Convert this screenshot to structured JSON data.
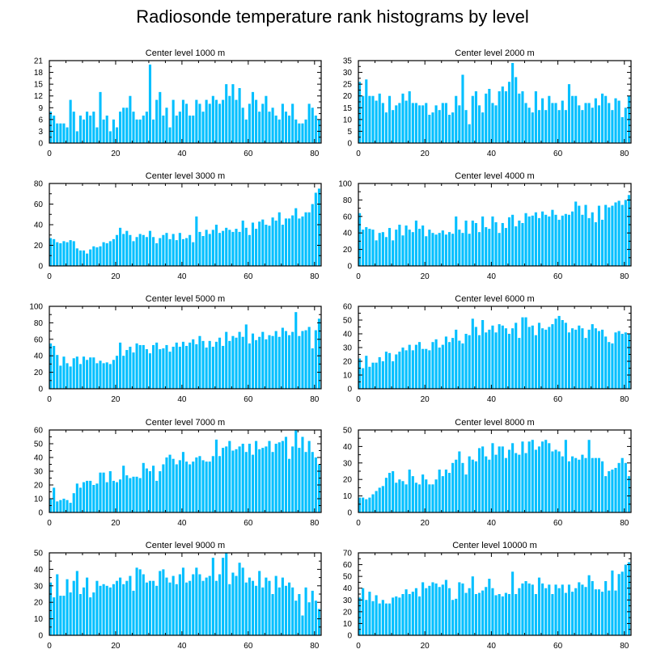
{
  "title": "Radiosonde temperature rank histograms by level",
  "bar_color": "#00bfff",
  "chart_data": [
    {
      "type": "bar",
      "title": "Center level 1000 m",
      "xlabel": "",
      "ylabel": "",
      "xlim": [
        0,
        82
      ],
      "ylim": [
        0,
        21
      ],
      "x_ticks": [
        0,
        20,
        40,
        60,
        80
      ],
      "y_ticks": [
        0,
        3,
        6,
        9,
        12,
        15,
        18,
        21
      ],
      "values": [
        8,
        7,
        5,
        5,
        5,
        4,
        11,
        8,
        3,
        7,
        6,
        8,
        7,
        8,
        4,
        13,
        6,
        7,
        3,
        6,
        4,
        8,
        9,
        9,
        12,
        8,
        6,
        6,
        7,
        8,
        20,
        6,
        11,
        13,
        7,
        9,
        4,
        11,
        7,
        8,
        11,
        10,
        7,
        7,
        11,
        10,
        8,
        11,
        10,
        12,
        11,
        10,
        11,
        15,
        12,
        15,
        11,
        14,
        9,
        6,
        10,
        13,
        11,
        8,
        10,
        12,
        8,
        9,
        7,
        6,
        10,
        8,
        7,
        10,
        6,
        5,
        5,
        6,
        10,
        9,
        7,
        6
      ]
    },
    {
      "type": "bar",
      "title": "Center level 2000 m",
      "xlabel": "",
      "ylabel": "",
      "xlim": [
        0,
        82
      ],
      "ylim": [
        0,
        35
      ],
      "x_ticks": [
        0,
        20,
        40,
        60,
        80
      ],
      "y_ticks": [
        0,
        5,
        10,
        15,
        20,
        25,
        30,
        35
      ],
      "values": [
        26,
        20,
        27,
        20,
        20,
        18,
        21,
        17,
        13,
        20,
        14,
        16,
        17,
        21,
        18,
        22,
        17,
        17,
        16,
        16,
        17,
        12,
        13,
        16,
        14,
        17,
        17,
        12,
        13,
        20,
        16,
        29,
        14,
        8,
        20,
        22,
        16,
        13,
        21,
        23,
        17,
        16,
        22,
        24,
        22,
        26,
        34,
        28,
        21,
        22,
        17,
        15,
        13,
        22,
        14,
        19,
        14,
        20,
        17,
        17,
        14,
        18,
        14,
        25,
        20,
        20,
        16,
        14,
        17,
        17,
        15,
        19,
        16,
        21,
        20,
        17,
        14,
        19,
        18,
        11,
        15,
        20
      ]
    },
    {
      "type": "bar",
      "title": "Center level 3000 m",
      "xlabel": "",
      "ylabel": "",
      "xlim": [
        0,
        82
      ],
      "ylim": [
        0,
        80
      ],
      "x_ticks": [
        0,
        20,
        40,
        60,
        80
      ],
      "y_ticks": [
        0,
        20,
        40,
        60,
        80
      ],
      "values": [
        27,
        26,
        23,
        22,
        24,
        23,
        25,
        24,
        17,
        15,
        15,
        12,
        16,
        19,
        18,
        19,
        23,
        22,
        24,
        26,
        30,
        37,
        31,
        34,
        30,
        24,
        28,
        31,
        30,
        28,
        34,
        28,
        22,
        27,
        30,
        32,
        26,
        31,
        25,
        32,
        26,
        27,
        30,
        23,
        48,
        33,
        29,
        35,
        31,
        35,
        40,
        32,
        34,
        37,
        35,
        33,
        36,
        33,
        44,
        37,
        30,
        42,
        36,
        43,
        45,
        40,
        39,
        47,
        44,
        52,
        40,
        46,
        46,
        49,
        56,
        46,
        48,
        52,
        52,
        60,
        71,
        75
      ]
    },
    {
      "type": "bar",
      "title": "Center level 4000 m",
      "xlabel": "",
      "ylabel": "",
      "xlim": [
        0,
        82
      ],
      "ylim": [
        0,
        100
      ],
      "x_ticks": [
        0,
        20,
        40,
        60,
        80
      ],
      "y_ticks": [
        0,
        20,
        40,
        60,
        80,
        100
      ],
      "values": [
        64,
        44,
        47,
        45,
        44,
        31,
        40,
        41,
        35,
        46,
        31,
        44,
        50,
        37,
        49,
        44,
        41,
        55,
        45,
        49,
        36,
        44,
        40,
        38,
        40,
        43,
        38,
        41,
        39,
        60,
        44,
        40,
        55,
        39,
        55,
        52,
        41,
        60,
        47,
        45,
        60,
        53,
        40,
        52,
        46,
        59,
        62,
        48,
        55,
        52,
        64,
        60,
        61,
        65,
        58,
        66,
        62,
        60,
        68,
        62,
        56,
        61,
        63,
        62,
        66,
        78,
        73,
        62,
        74,
        58,
        65,
        53,
        73,
        56,
        74,
        71,
        73,
        77,
        79,
        74,
        80,
        86
      ]
    },
    {
      "type": "bar",
      "title": "Center level 5000 m",
      "xlabel": "",
      "ylabel": "",
      "xlim": [
        0,
        82
      ],
      "ylim": [
        0,
        100
      ],
      "x_ticks": [
        0,
        20,
        40,
        60,
        80
      ],
      "y_ticks": [
        0,
        20,
        40,
        60,
        80,
        100
      ],
      "values": [
        55,
        52,
        41,
        28,
        39,
        31,
        27,
        37,
        39,
        30,
        39,
        35,
        38,
        38,
        31,
        34,
        31,
        32,
        30,
        35,
        40,
        56,
        40,
        47,
        51,
        44,
        55,
        53,
        53,
        48,
        43,
        53,
        56,
        48,
        49,
        53,
        45,
        51,
        56,
        51,
        57,
        52,
        56,
        60,
        54,
        64,
        58,
        50,
        58,
        51,
        57,
        62,
        52,
        69,
        58,
        64,
        62,
        69,
        63,
        78,
        55,
        67,
        59,
        63,
        69,
        60,
        65,
        64,
        70,
        63,
        74,
        70,
        65,
        69,
        93,
        64,
        70,
        71,
        75,
        49,
        71,
        85
      ]
    },
    {
      "type": "bar",
      "title": "Center level 6000 m",
      "xlabel": "",
      "ylabel": "",
      "xlim": [
        0,
        82
      ],
      "ylim": [
        0,
        60
      ],
      "x_ticks": [
        0,
        20,
        40,
        60,
        80
      ],
      "y_ticks": [
        0,
        10,
        20,
        30,
        40,
        50,
        60
      ],
      "values": [
        22,
        15,
        24,
        16,
        19,
        19,
        23,
        20,
        27,
        26,
        20,
        25,
        27,
        30,
        28,
        32,
        28,
        32,
        34,
        29,
        29,
        28,
        34,
        36,
        30,
        32,
        38,
        34,
        37,
        43,
        35,
        33,
        40,
        39,
        51,
        45,
        39,
        50,
        41,
        43,
        46,
        41,
        47,
        46,
        44,
        40,
        44,
        48,
        37,
        52,
        52,
        45,
        46,
        39,
        48,
        44,
        43,
        45,
        47,
        51,
        53,
        50,
        48,
        41,
        44,
        43,
        46,
        44,
        37,
        43,
        47,
        44,
        42,
        43,
        38,
        34,
        33,
        41,
        42,
        40,
        41,
        40
      ]
    },
    {
      "type": "bar",
      "title": "Center level 7000 m",
      "xlabel": "",
      "ylabel": "",
      "xlim": [
        0,
        82
      ],
      "ylim": [
        0,
        60
      ],
      "x_ticks": [
        0,
        20,
        40,
        60,
        80
      ],
      "y_ticks": [
        0,
        10,
        20,
        30,
        40,
        50,
        60
      ],
      "values": [
        10,
        18,
        8,
        9,
        10,
        9,
        7,
        14,
        21,
        18,
        22,
        23,
        23,
        20,
        21,
        29,
        29,
        22,
        30,
        23,
        22,
        24,
        34,
        27,
        25,
        26,
        26,
        25,
        36,
        32,
        30,
        34,
        23,
        30,
        35,
        40,
        42,
        39,
        35,
        38,
        44,
        37,
        35,
        37,
        40,
        41,
        38,
        37,
        37,
        41,
        53,
        41,
        47,
        48,
        52,
        45,
        46,
        48,
        50,
        44,
        50,
        42,
        52,
        46,
        47,
        48,
        52,
        44,
        50,
        51,
        52,
        55,
        39,
        48,
        60,
        47,
        55,
        44,
        52,
        44,
        40,
        35
      ]
    },
    {
      "type": "bar",
      "title": "Center level 8000 m",
      "xlabel": "",
      "ylabel": "",
      "xlim": [
        0,
        82
      ],
      "ylim": [
        0,
        50
      ],
      "x_ticks": [
        0,
        20,
        40,
        60,
        80
      ],
      "y_ticks": [
        0,
        10,
        20,
        30,
        40,
        50
      ],
      "values": [
        9,
        9,
        8,
        9,
        11,
        13,
        15,
        16,
        21,
        24,
        25,
        18,
        20,
        19,
        17,
        26,
        22,
        18,
        17,
        23,
        20,
        17,
        17,
        20,
        26,
        22,
        26,
        24,
        30,
        32,
        37,
        30,
        23,
        34,
        32,
        31,
        39,
        40,
        34,
        32,
        42,
        35,
        40,
        40,
        33,
        38,
        42,
        36,
        35,
        43,
        36,
        43,
        44,
        38,
        40,
        43,
        44,
        42,
        37,
        38,
        37,
        34,
        44,
        31,
        34,
        33,
        32,
        35,
        33,
        44,
        33,
        33,
        33,
        31,
        22,
        25,
        26,
        27,
        30,
        33,
        30,
        22
      ]
    },
    {
      "type": "bar",
      "title": "Center level 9000 m",
      "xlabel": "",
      "ylabel": "",
      "xlim": [
        0,
        82
      ],
      "ylim": [
        0,
        50
      ],
      "x_ticks": [
        0,
        20,
        40,
        60,
        80
      ],
      "y_ticks": [
        0,
        10,
        20,
        30,
        40,
        50
      ],
      "values": [
        32,
        23,
        37,
        24,
        24,
        34,
        26,
        33,
        39,
        25,
        29,
        35,
        23,
        26,
        33,
        30,
        31,
        30,
        29,
        31,
        33,
        35,
        31,
        33,
        36,
        27,
        41,
        40,
        37,
        32,
        33,
        33,
        30,
        39,
        40,
        35,
        32,
        36,
        31,
        37,
        41,
        32,
        33,
        37,
        41,
        37,
        33,
        35,
        36,
        47,
        33,
        37,
        47,
        50,
        31,
        38,
        36,
        44,
        41,
        32,
        35,
        33,
        30,
        39,
        29,
        35,
        33,
        25,
        36,
        29,
        35,
        30,
        32,
        29,
        21,
        25,
        12,
        29,
        20,
        27,
        21,
        16
      ]
    },
    {
      "type": "bar",
      "title": "Center level 10000 m",
      "xlabel": "",
      "ylabel": "",
      "xlim": [
        0,
        82
      ],
      "ylim": [
        0,
        70
      ],
      "x_ticks": [
        0,
        20,
        40,
        60,
        80
      ],
      "y_ticks": [
        0,
        10,
        20,
        30,
        40,
        50,
        60,
        70
      ],
      "values": [
        32,
        40,
        30,
        37,
        29,
        34,
        27,
        30,
        27,
        27,
        32,
        33,
        32,
        35,
        39,
        35,
        37,
        40,
        33,
        45,
        40,
        42,
        45,
        44,
        41,
        43,
        47,
        40,
        30,
        31,
        45,
        44,
        36,
        40,
        50,
        35,
        36,
        38,
        41,
        48,
        40,
        34,
        35,
        33,
        36,
        35,
        54,
        35,
        40,
        44,
        46,
        44,
        43,
        35,
        49,
        44,
        40,
        43,
        35,
        43,
        40,
        43,
        36,
        43,
        37,
        40,
        45,
        43,
        41,
        51,
        46,
        39,
        39,
        37,
        46,
        38,
        55,
        38,
        52,
        54,
        60,
        62
      ]
    }
  ]
}
